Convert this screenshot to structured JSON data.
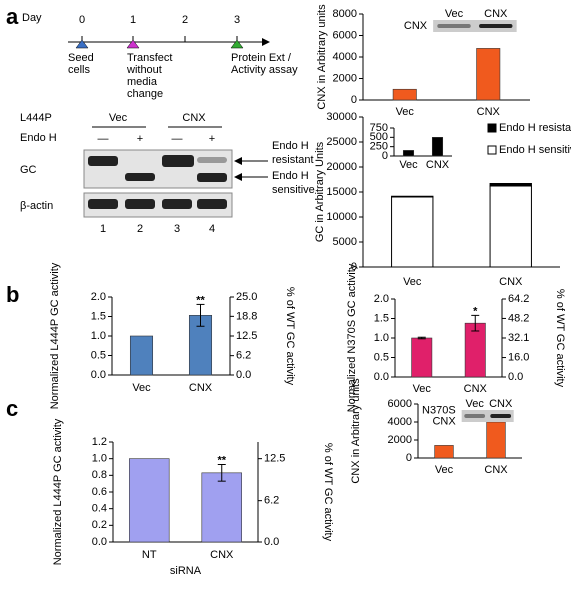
{
  "panel_labels": [
    "a",
    "b",
    "c"
  ],
  "timeline": {
    "day_label": "Day",
    "days": [
      "0",
      "1",
      "2",
      "3"
    ],
    "events": [
      [
        "Seed",
        "cells"
      ],
      [
        "Transfect",
        "without",
        "media",
        "change"
      ],
      null,
      [
        "Protein Ext /",
        "Activity assay"
      ]
    ],
    "event_colors": [
      "#3a6fc4",
      "#cc33cc",
      null,
      "#33aa33"
    ]
  },
  "blot": {
    "mutant": "L444P",
    "treatment_label": "Endo H",
    "groups": [
      "Vec",
      "CNX"
    ],
    "treatments": [
      "—",
      "+",
      "—",
      "+"
    ],
    "rows": [
      "GC",
      "β-actin"
    ],
    "lanes": [
      "1",
      "2",
      "3",
      "4"
    ],
    "arrows": [
      [
        "Endo H",
        "resistant"
      ],
      [
        "Endo H",
        "sensitive"
      ]
    ]
  },
  "chart_data": [
    {
      "type": "bar",
      "ylabel": "CNX in Arbitrary units",
      "categories": [
        "Vec",
        "CNX"
      ],
      "values": [
        1000,
        4800
      ],
      "color": "#f05a1e",
      "ylim": [
        0,
        8000
      ],
      "yticks": [
        0,
        2000,
        4000,
        6000,
        8000
      ],
      "blot_row_label": [
        "CNX"
      ],
      "blot_lanes": [
        "Vec",
        "CNX"
      ]
    },
    {
      "type": "stacked_bar",
      "ylabel": "GC in Arbitrary Units",
      "categories": [
        "Vec",
        "CNX"
      ],
      "series": [
        {
          "name": "Endo H sensitive",
          "color": "#ffffff",
          "values": [
            14000,
            16200
          ]
        },
        {
          "name": "Endo H resistant",
          "color": "#000000",
          "values": [
            150,
            500
          ]
        }
      ],
      "ylim": [
        0,
        30000
      ],
      "yticks": [
        0,
        5000,
        10000,
        15000,
        20000,
        25000,
        30000
      ],
      "legend": "top-right"
    },
    {
      "type": "bar",
      "categories": [
        "Vec",
        "CNX"
      ],
      "values": [
        150,
        500
      ],
      "color": "#000000",
      "ylim": [
        0,
        750
      ],
      "yticks": [
        0,
        250,
        500,
        750
      ]
    },
    {
      "type": "bar",
      "ylabel": "Normalized L444P GC activity",
      "y2label": "% of WT GC activity",
      "categories": [
        "Vec",
        "CNX"
      ],
      "values": [
        1.0,
        1.53
      ],
      "errors": [
        0,
        0.28
      ],
      "annotations": [
        null,
        "**"
      ],
      "color": "#4f81bd",
      "ylim": [
        0,
        2.0
      ],
      "yticks": [
        {
          "value": 0,
          "label": "0.0"
        },
        {
          "value": 0.5,
          "label": "0.5"
        },
        {
          "value": 1,
          "label": "1.0"
        },
        {
          "value": 1.5,
          "label": "1.5"
        },
        {
          "value": 2,
          "label": "2.0"
        }
      ],
      "y2lim": [
        0,
        25
      ],
      "y2ticks": [
        {
          "value": 0,
          "label": "0.0"
        },
        6.2,
        12.5,
        18.8,
        {
          "value": 25,
          "label": "25.0"
        }
      ]
    },
    {
      "type": "bar",
      "ylabel": "Normalized N370S GC activity",
      "y2label": "% of WT GC activity",
      "categories": [
        "Vec",
        "CNX"
      ],
      "values": [
        1.0,
        1.38
      ],
      "errors": [
        0.02,
        0.2
      ],
      "annotations": [
        null,
        "*"
      ],
      "color": "#e0206a",
      "ylim": [
        0,
        2.0
      ],
      "yticks": [
        {
          "value": 0,
          "label": "0.0"
        },
        {
          "value": 0.5,
          "label": "0.5"
        },
        {
          "value": 1,
          "label": "1.0"
        },
        {
          "value": 1.5,
          "label": "1.5"
        },
        {
          "value": 2,
          "label": "2.0"
        }
      ],
      "y2lim": [
        0,
        64.2
      ],
      "y2ticks": [
        {
          "value": 0,
          "label": "0.0"
        },
        {
          "value": 16,
          "label": "16.0"
        },
        32.1,
        48.2,
        64.2
      ]
    },
    {
      "type": "bar",
      "ylabel": "CNX in Arbitrary units",
      "categories": [
        "Vec",
        "CNX"
      ],
      "values": [
        1400,
        4000
      ],
      "color": "#f05a1e",
      "ylim": [
        0,
        6000
      ],
      "yticks": [
        0,
        2000,
        4000,
        6000
      ],
      "blot_row_label": [
        "N370S",
        "CNX"
      ],
      "blot_lanes": [
        "Vec",
        "CNX"
      ]
    },
    {
      "type": "bar",
      "ylabel": "Normalized L444P GC activity",
      "y2label": "% of WT GC activity",
      "xlabel": "siRNA",
      "categories": [
        "NT",
        "CNX"
      ],
      "values": [
        1.0,
        0.83
      ],
      "errors": [
        0,
        0.1
      ],
      "annotations": [
        null,
        "**"
      ],
      "color": "#a0a0f0",
      "ylim": [
        0,
        1.2
      ],
      "yticks": [
        {
          "value": 0,
          "label": "0.0"
        },
        {
          "value": 0.2,
          "label": "0.2"
        },
        {
          "value": 0.4,
          "label": "0.4"
        },
        {
          "value": 0.6,
          "label": "0.6"
        },
        {
          "value": 0.8,
          "label": "0.8"
        },
        {
          "value": 1,
          "label": "1.0"
        },
        {
          "value": 1.2,
          "label": "1.2"
        }
      ],
      "y2lim": [
        0,
        15
      ],
      "y2ticks": [
        {
          "value": 0,
          "label": "0.0"
        },
        6.2,
        12.5
      ]
    }
  ]
}
